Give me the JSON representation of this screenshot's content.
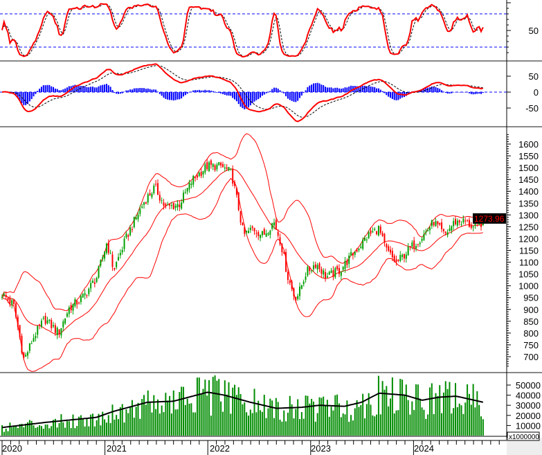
{
  "chart_data": [
    {
      "type": "line",
      "panel": "stochastic",
      "yticks": [
        50
      ],
      "reference_lines": [
        80,
        20
      ],
      "ylim": [
        0,
        100
      ],
      "colors": {
        "k": "#ff0000",
        "d": "#000000",
        "ref": "#0000ff"
      }
    },
    {
      "type": "bar",
      "panel": "macd",
      "yticks": [
        50,
        0,
        -50
      ],
      "reference_lines": [
        0
      ],
      "colors": {
        "macd": "#ff0000",
        "signal": "#000000",
        "histogram": "#0000ff"
      }
    },
    {
      "type": "candlestick",
      "panel": "price",
      "ylim": [
        650,
        1650
      ],
      "yticks": [
        1600,
        1550,
        1500,
        1450,
        1400,
        1350,
        1300,
        1250,
        1200,
        1150,
        1100,
        1050,
        1000,
        950,
        900,
        850,
        800,
        750,
        700
      ],
      "last_price": "1273.96",
      "bollinger_bands": true,
      "colors": {
        "up": "#00a000",
        "down": "#ff0000",
        "bands": "#ff0000",
        "last_price_bg": "#000000",
        "last_price_fg": "#ff0000"
      },
      "close_anchors": [
        [
          "2020-01-01",
          965
        ],
        [
          "2020-02-11",
          920
        ],
        [
          "2020-03-19",
          686
        ],
        [
          "2020-04-25",
          790
        ],
        [
          "2020-06-01",
          860
        ],
        [
          "2020-07-20",
          800
        ],
        [
          "2020-08-26",
          905
        ],
        [
          "2020-10-14",
          950
        ],
        [
          "2020-12-03",
          1037
        ],
        [
          "2021-01-08",
          1184
        ],
        [
          "2021-02-01",
          1067
        ],
        [
          "2021-03-21",
          1213
        ],
        [
          "2021-05-22",
          1360
        ],
        [
          "2021-06-28",
          1418
        ],
        [
          "2021-08-03",
          1330
        ],
        [
          "2021-09-22",
          1345
        ],
        [
          "2021-11-09",
          1450
        ],
        [
          "2021-12-29",
          1506
        ],
        [
          "2022-02-17",
          1506
        ],
        [
          "2022-03-26",
          1477
        ],
        [
          "2022-04-20",
          1330
        ],
        [
          "2022-05-08",
          1213
        ],
        [
          "2022-06-10",
          1243
        ],
        [
          "2022-07-16",
          1213
        ],
        [
          "2022-08-23",
          1272
        ],
        [
          "2022-09-17",
          1184
        ],
        [
          "2022-10-12",
          1037
        ],
        [
          "2022-11-06",
          950
        ],
        [
          "2022-11-19",
          965
        ],
        [
          "2022-12-14",
          1052
        ],
        [
          "2023-01-20",
          1096
        ],
        [
          "2023-02-26",
          1037
        ],
        [
          "2023-04-16",
          1067
        ],
        [
          "2023-06-03",
          1140
        ],
        [
          "2023-07-24",
          1213
        ],
        [
          "2023-08-30",
          1243
        ],
        [
          "2023-09-24",
          1155
        ],
        [
          "2023-11-01",
          1096
        ],
        [
          "2023-12-17",
          1155
        ],
        [
          "2024-02-04",
          1213
        ],
        [
          "2024-03-13",
          1272
        ],
        [
          "2024-04-20",
          1213
        ],
        [
          "2024-05-27",
          1272
        ],
        [
          "2024-07-02",
          1272
        ],
        [
          "2024-08-07",
          1243
        ],
        [
          "2024-09-05",
          1274
        ]
      ]
    },
    {
      "type": "bar",
      "panel": "volume",
      "yticks": [
        50000,
        40000,
        30000,
        20000,
        10000,
        0
      ],
      "unit_label": "x1000000",
      "colors": {
        "bars": "#008c00",
        "average": "#000000"
      },
      "average_anchors": [
        [
          "2020-01-01",
          8000
        ],
        [
          "2020-06-01",
          13000
        ],
        [
          "2020-12-01",
          18000
        ],
        [
          "2021-02-01",
          24000
        ],
        [
          "2021-06-01",
          33000
        ],
        [
          "2021-09-01",
          34000
        ],
        [
          "2022-01-01",
          43000
        ],
        [
          "2022-03-01",
          40000
        ],
        [
          "2022-06-01",
          33000
        ],
        [
          "2022-09-01",
          27000
        ],
        [
          "2022-12-01",
          28000
        ],
        [
          "2023-02-01",
          30000
        ],
        [
          "2023-05-01",
          29000
        ],
        [
          "2023-07-01",
          33000
        ],
        [
          "2023-09-01",
          42000
        ],
        [
          "2023-12-01",
          40000
        ],
        [
          "2024-02-01",
          35000
        ],
        [
          "2024-04-01",
          38000
        ],
        [
          "2024-06-01",
          39000
        ],
        [
          "2024-09-05",
          33000
        ]
      ]
    }
  ],
  "x_axis": {
    "years": [
      "2020",
      "2021",
      "2022",
      "2023",
      "2024"
    ]
  }
}
